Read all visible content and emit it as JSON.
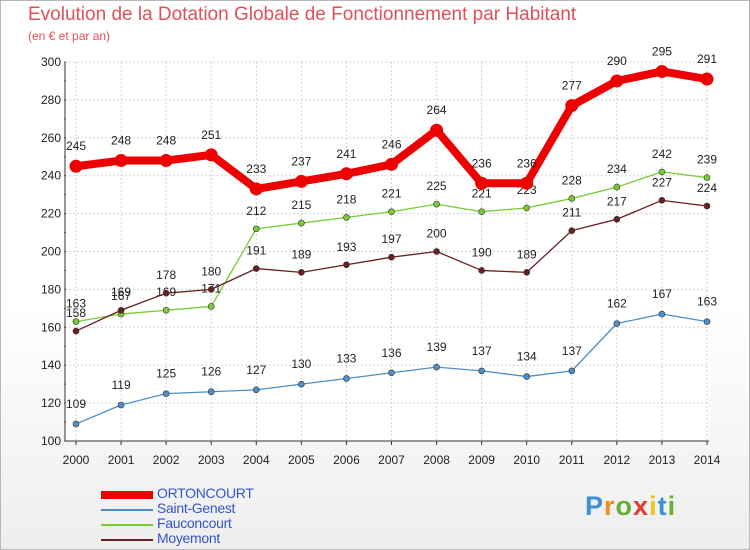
{
  "title": "Evolution de la Dotation Globale de Fonctionnement par Habitant",
  "subtitle": "(en € et par an)",
  "chart_data": {
    "type": "line",
    "title": "Evolution de la Dotation Globale de Fonctionnement par Habitant",
    "subtitle": "(en € et par an)",
    "xlabel": "",
    "ylabel": "",
    "x": [
      "2000",
      "2001",
      "2002",
      "2003",
      "2004",
      "2005",
      "2006",
      "2007",
      "2008",
      "2009",
      "2010",
      "2011",
      "2012",
      "2013",
      "2014"
    ],
    "ylim": [
      100,
      300
    ],
    "yticks": [
      100,
      120,
      140,
      160,
      180,
      200,
      220,
      240,
      260,
      280,
      300
    ],
    "grid": true,
    "series": [
      {
        "name": "ORTONCOURT",
        "color": "#ee0000",
        "values": [
          245,
          248,
          248,
          251,
          233,
          237,
          241,
          246,
          264,
          236,
          236,
          277,
          290,
          295,
          291
        ]
      },
      {
        "name": "Saint-Genest",
        "color": "#4d8fc6",
        "values": [
          109,
          119,
          125,
          126,
          127,
          130,
          133,
          136,
          139,
          137,
          134,
          137,
          162,
          167,
          163
        ]
      },
      {
        "name": "Fauconcourt",
        "color": "#77cc33",
        "values": [
          163,
          167,
          169,
          171,
          212,
          215,
          218,
          221,
          225,
          221,
          223,
          228,
          234,
          242,
          239
        ]
      },
      {
        "name": "Moyemont",
        "color": "#6b1e22",
        "values": [
          158,
          169,
          178,
          180,
          191,
          189,
          193,
          197,
          200,
          190,
          189,
          211,
          217,
          227,
          224
        ]
      }
    ]
  },
  "logo": {
    "letters": [
      "P",
      "r",
      "o",
      "x",
      "i",
      "t",
      "i"
    ],
    "colors": [
      "#3d8fd6",
      "#f08a24",
      "#6ab130",
      "#e63a2e",
      "#f0c419",
      "#3d8fd6",
      "#6ab130"
    ]
  }
}
